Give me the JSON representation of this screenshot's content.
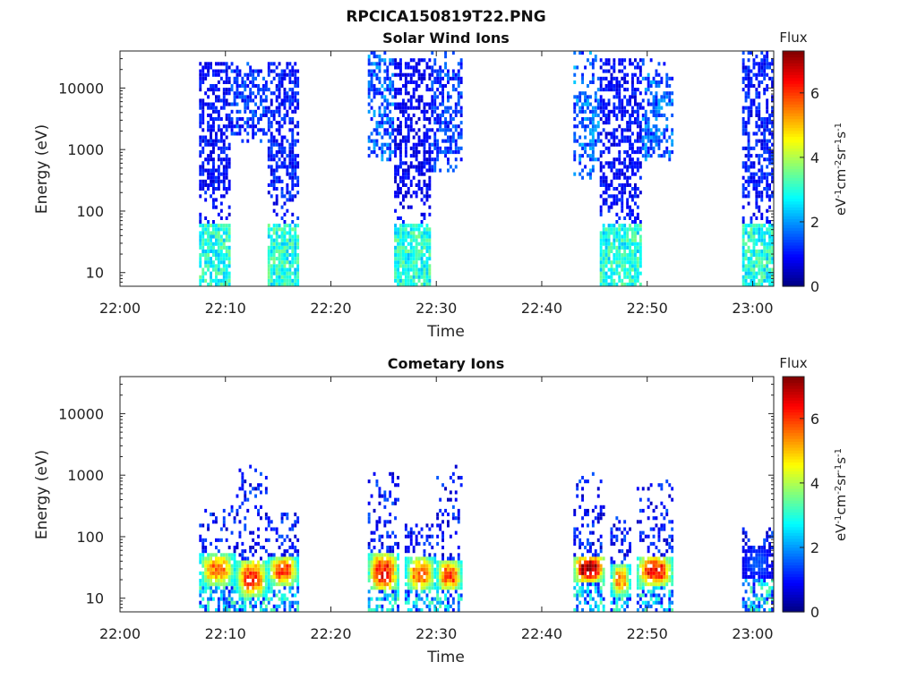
{
  "figure": {
    "title": "RPCICA150819T22.PNG"
  },
  "colormap": {
    "stops": [
      "#00007f",
      "#0000ff",
      "#007fff",
      "#00ffff",
      "#7fff7f",
      "#ffff00",
      "#ff7f00",
      "#ff0000",
      "#7f0000"
    ]
  },
  "chart_data": [
    {
      "type": "heatmap",
      "title": "Solar Wind Ions",
      "xlabel": "Time",
      "ylabel": "Energy (eV)",
      "yscale": "log",
      "xlim": [
        "22:00",
        "23:02"
      ],
      "ylim": [
        6,
        40000
      ],
      "xticks": [
        "22:00",
        "22:10",
        "22:20",
        "22:30",
        "22:40",
        "22:50",
        "23:00"
      ],
      "yticks": [
        10,
        100,
        1000,
        10000
      ],
      "ytick_labels": [
        "10",
        "100",
        "1000",
        "10000"
      ],
      "colorbar": {
        "title": "Flux",
        "label": "eV-1cm-2sr-1s-1",
        "range": [
          0,
          7.3
        ],
        "ticks": [
          "0",
          "2",
          "4",
          "6"
        ]
      },
      "grid": false,
      "bursts": [
        {
          "start": "22:07.5",
          "end": "22:10.5",
          "emin": 6,
          "emax": 25000,
          "core_lo": 200,
          "core_hi": 25000,
          "peak": 0.9
        },
        {
          "start": "22:10.5",
          "end": "22:14.0",
          "emin": 1200,
          "emax": 25000,
          "core_lo": 1500,
          "core_hi": 20000,
          "peak": 1.2
        },
        {
          "start": "22:14.0",
          "end": "22:17.0",
          "emin": 6,
          "emax": 30000,
          "core_lo": 150,
          "core_hi": 25000,
          "peak": 1.0
        },
        {
          "start": "22:23.5",
          "end": "22:26.0",
          "emin": 600,
          "emax": 35000,
          "core_lo": 700,
          "core_hi": 30000,
          "peak": 1.5
        },
        {
          "start": "22:26.0",
          "end": "22:29.5",
          "emin": 6,
          "emax": 30000,
          "core_lo": 150,
          "core_hi": 30000,
          "peak": 0.8
        },
        {
          "start": "22:29.5",
          "end": "22:32.5",
          "emin": 400,
          "emax": 35000,
          "core_lo": 800,
          "core_hi": 20000,
          "peak": 1.2
        },
        {
          "start": "22:43.0",
          "end": "22:45.5",
          "emin": 300,
          "emax": 40000,
          "core_lo": 600,
          "core_hi": 8000,
          "peak": 1.6
        },
        {
          "start": "22:45.5",
          "end": "22:49.5",
          "emin": 6,
          "emax": 30000,
          "core_lo": 100,
          "core_hi": 30000,
          "peak": 0.9
        },
        {
          "start": "22:49.5",
          "end": "22:52.5",
          "emin": 600,
          "emax": 30000,
          "core_lo": 700,
          "core_hi": 15000,
          "peak": 1.5
        },
        {
          "start": "22:59.0",
          "end": "23:02.0",
          "emin": 6,
          "emax": 40000,
          "core_lo": 150,
          "core_hi": 30000,
          "peak": 1.0
        }
      ],
      "low_energy_band": {
        "emin": 6,
        "emax": 60,
        "level": 2.8
      }
    },
    {
      "type": "heatmap",
      "title": "Cometary Ions",
      "xlabel": "Time",
      "ylabel": "Energy (eV)",
      "yscale": "log",
      "xlim": [
        "22:00",
        "23:02"
      ],
      "ylim": [
        6,
        40000
      ],
      "xticks": [
        "22:00",
        "22:10",
        "22:20",
        "22:30",
        "22:40",
        "22:50",
        "23:00"
      ],
      "yticks": [
        10,
        100,
        1000,
        10000
      ],
      "ytick_labels": [
        "10",
        "100",
        "1000",
        "10000"
      ],
      "colorbar": {
        "title": "Flux",
        "label": "eV-1cm-2sr-1s-1",
        "range": [
          0,
          7.3
        ],
        "ticks": [
          "0",
          "2",
          "4",
          "6"
        ]
      },
      "grid": false,
      "bursts": [
        {
          "start": "22:07.5",
          "end": "22:11.0",
          "emin": 6,
          "emax": 300,
          "core_lo": 15,
          "core_hi": 50,
          "peak": 5.5
        },
        {
          "start": "22:11.0",
          "end": "22:14.0",
          "emin": 6,
          "emax": 1300,
          "core_lo": 10,
          "core_hi": 40,
          "peak": 6.0
        },
        {
          "start": "22:14.0",
          "end": "22:17.0",
          "emin": 6,
          "emax": 250,
          "core_lo": 15,
          "core_hi": 45,
          "peak": 5.8
        },
        {
          "start": "22:23.5",
          "end": "22:26.5",
          "emin": 6,
          "emax": 1000,
          "core_lo": 12,
          "core_hi": 50,
          "peak": 6.2
        },
        {
          "start": "22:27.0",
          "end": "22:30.0",
          "emin": 6,
          "emax": 150,
          "core_lo": 12,
          "core_hi": 45,
          "peak": 5.5
        },
        {
          "start": "22:30.0",
          "end": "22:32.5",
          "emin": 6,
          "emax": 1300,
          "core_lo": 12,
          "core_hi": 40,
          "peak": 5.8
        },
        {
          "start": "22:43.0",
          "end": "22:46.0",
          "emin": 6,
          "emax": 1400,
          "core_lo": 18,
          "core_hi": 45,
          "peak": 7.2
        },
        {
          "start": "22:46.5",
          "end": "22:48.5",
          "emin": 6,
          "emax": 200,
          "core_lo": 10,
          "core_hi": 35,
          "peak": 5.2
        },
        {
          "start": "22:49.0",
          "end": "22:52.5",
          "emin": 6,
          "emax": 800,
          "core_lo": 15,
          "core_hi": 45,
          "peak": 6.3
        },
        {
          "start": "22:59.0",
          "end": "23:02.0",
          "emin": 6,
          "emax": 140,
          "core_lo": 20,
          "core_hi": 60,
          "peak": 1.5
        }
      ]
    }
  ]
}
